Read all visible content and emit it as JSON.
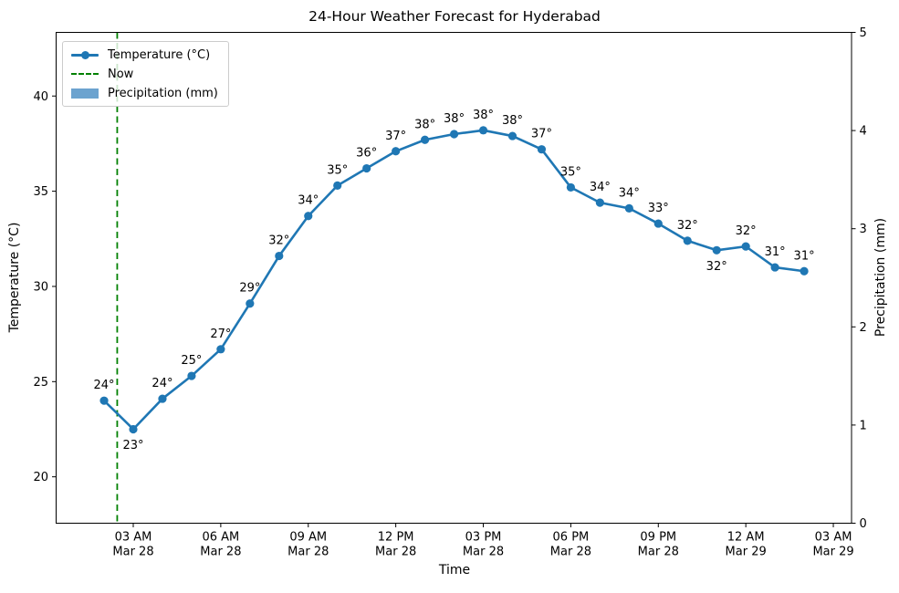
{
  "chart_data": {
    "type": "line",
    "title": "24-Hour Weather Forecast for Hyderabad",
    "xlabel": "Time",
    "left_axis": {
      "label": "Temperature (°C)",
      "ticks": [
        20,
        25,
        30,
        35,
        40
      ],
      "ylim": [
        17.5,
        43.2
      ]
    },
    "right_axis": {
      "label": "Precipitation (mm)",
      "ticks": [
        0,
        1,
        2,
        3,
        4,
        5
      ],
      "ylim": [
        0,
        5
      ]
    },
    "x_axis": {
      "tick_hours": [
        3,
        6,
        9,
        12,
        15,
        18,
        21,
        24,
        27
      ],
      "tick_labels": [
        {
          "time": "03 AM",
          "date": "Mar 28"
        },
        {
          "time": "06 AM",
          "date": "Mar 28"
        },
        {
          "time": "09 AM",
          "date": "Mar 28"
        },
        {
          "time": "12 PM",
          "date": "Mar 28"
        },
        {
          "time": "03 PM",
          "date": "Mar 28"
        },
        {
          "time": "06 PM",
          "date": "Mar 28"
        },
        {
          "time": "09 PM",
          "date": "Mar 28"
        },
        {
          "time": "12 AM",
          "date": "Mar 29"
        },
        {
          "time": "03 AM",
          "date": "Mar 29"
        }
      ]
    },
    "series": [
      {
        "name": "Temperature (°C)",
        "kind": "line",
        "color": "#1f77b4",
        "marker": "circle",
        "x_hours": [
          2,
          3,
          4,
          5,
          6,
          7,
          8,
          9,
          10,
          11,
          12,
          13,
          14,
          15,
          16,
          17,
          18,
          19,
          20,
          21,
          22,
          23,
          24,
          25,
          26
        ],
        "values": [
          24.0,
          22.5,
          24.1,
          25.3,
          26.7,
          29.1,
          31.6,
          33.7,
          35.3,
          36.2,
          37.1,
          37.7,
          38.0,
          38.2,
          37.9,
          37.2,
          35.2,
          34.4,
          34.1,
          33.3,
          32.4,
          31.9,
          32.1,
          31.0,
          30.8
        ],
        "point_labels": [
          "24°",
          "23°",
          "24°",
          "25°",
          "27°",
          "29°",
          "32°",
          "34°",
          "35°",
          "36°",
          "37°",
          "38°",
          "38°",
          "38°",
          "38°",
          "37°",
          "35°",
          "34°",
          "34°",
          "33°",
          "32°",
          "32°",
          "32°",
          "31°",
          "31°"
        ],
        "labels_below": [
          1,
          21
        ]
      },
      {
        "name": "Now",
        "kind": "vline",
        "style": "dashed",
        "color": "#008000",
        "x_hour": 2.45
      },
      {
        "name": "Precipitation (mm)",
        "kind": "bar",
        "axis": "right",
        "color": "#6ca3cf",
        "values": [
          0,
          0,
          0,
          0,
          0,
          0,
          0,
          0,
          0,
          0,
          0,
          0,
          0,
          0,
          0,
          0,
          0,
          0,
          0,
          0,
          0,
          0,
          0,
          0,
          0
        ]
      }
    ],
    "legend": {
      "position": "upper-left",
      "items": [
        "Temperature (°C)",
        "Now",
        "Precipitation (mm)"
      ]
    }
  }
}
